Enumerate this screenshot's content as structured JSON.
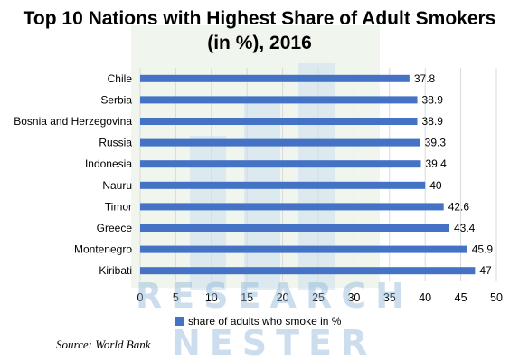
{
  "chart_data": {
    "type": "bar",
    "orientation": "horizontal",
    "title_line1": "Top 10 Nations with Highest Share of Adult Smokers",
    "title_line2": "(in %), 2016",
    "categories": [
      "Chile",
      "Serbia",
      "Bosnia and Herzegovina",
      "Russia",
      "Indonesia",
      "Nauru",
      "Timor",
      "Greece",
      "Montenegro",
      "Kiribati"
    ],
    "series": [
      {
        "name": "share of adults who smoke in %",
        "values": [
          37.8,
          38.9,
          38.9,
          39.3,
          39.4,
          40,
          42.6,
          43.4,
          45.9,
          47
        ]
      }
    ],
    "value_labels": [
      "37.8",
      "38.9",
      "38.9",
      "39.3",
      "39.4",
      "40",
      "42.6",
      "43.4",
      "45.9",
      "47"
    ],
    "x_ticks": [
      0,
      5,
      10,
      15,
      20,
      25,
      30,
      35,
      40,
      45,
      50
    ],
    "xlim": [
      0,
      50
    ],
    "grid": true,
    "legend": "bottom",
    "bar_color": "#4472c4"
  },
  "source": "Source: World Bank",
  "watermark": {
    "line1": "RESEARCH",
    "line2": "NESTER"
  }
}
